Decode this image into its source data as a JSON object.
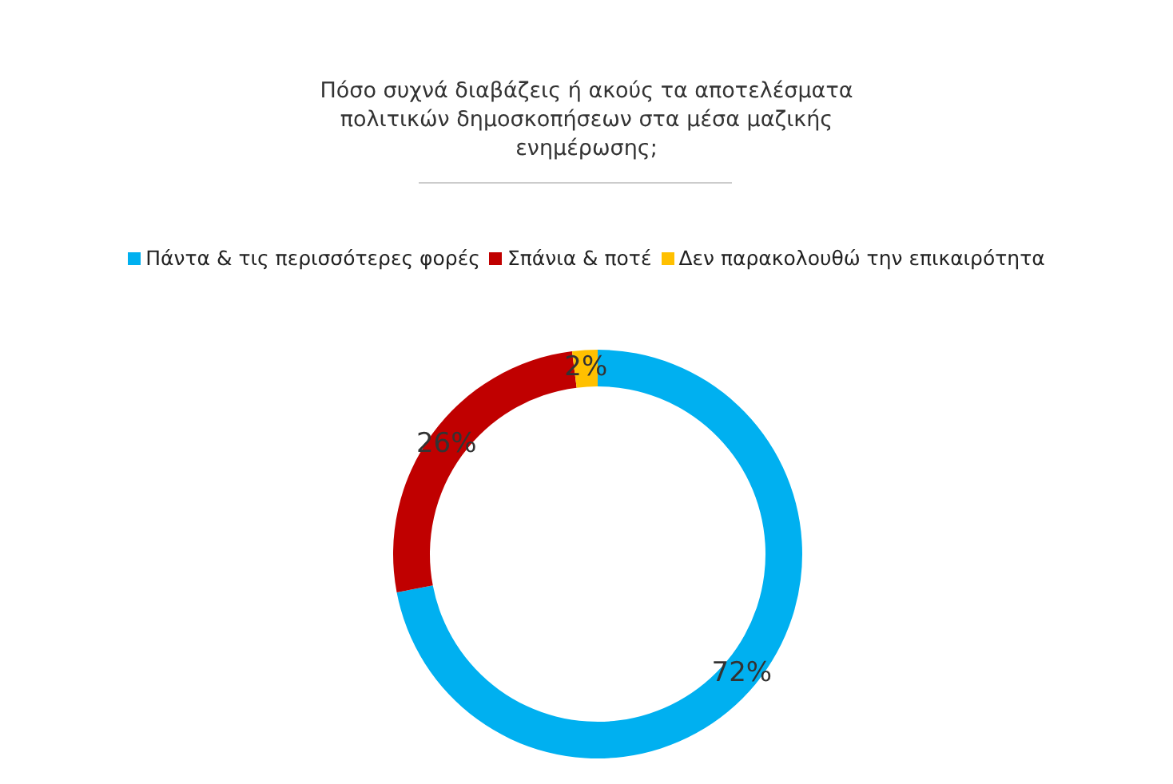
{
  "chart_data": {
    "type": "donut",
    "title": "Πόσο συχνά διαβάζεις ή ακούς τα αποτελέσματα πολιτικών δημοσκοπήσεων στα μέσα μαζικής ενημέρωσης;",
    "categories": [
      "Πάντα & τις περισσότερες φορές",
      "Σπάνια & ποτέ",
      "Δεν παρακολουθώ την επικαιρότητα"
    ],
    "values": [
      72,
      26,
      2
    ],
    "colors": [
      "#00b0f0",
      "#c00000",
      "#ffc000"
    ],
    "value_labels": [
      "72%",
      "26%",
      "2%"
    ],
    "legend": "top"
  }
}
